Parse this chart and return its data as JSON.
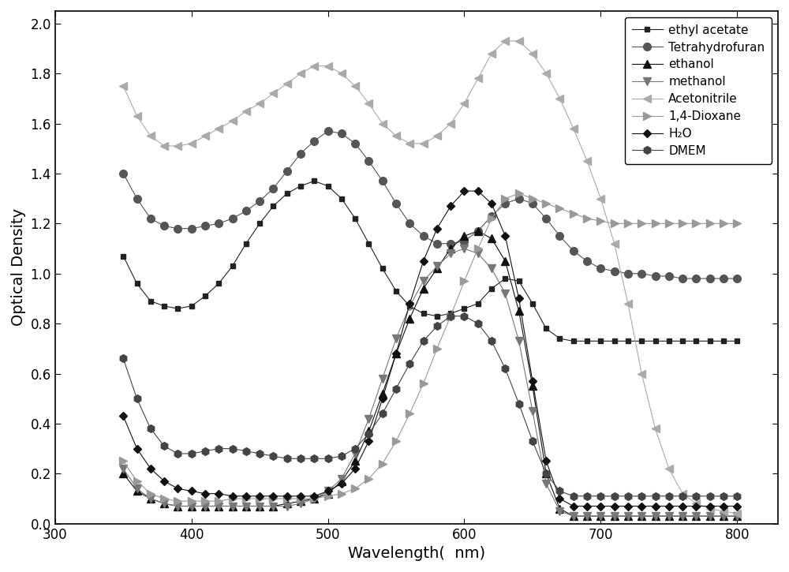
{
  "ylabel": "Optical Density",
  "xlabel": "Wavelength(  nm)",
  "xlim": [
    300,
    830
  ],
  "ylim": [
    0,
    2.05
  ],
  "xticks": [
    300,
    400,
    500,
    600,
    700,
    800
  ],
  "yticks": [
    0.0,
    0.2,
    0.4,
    0.6,
    0.8,
    1.0,
    1.2,
    1.4,
    1.6,
    1.8,
    2.0
  ],
  "series": [
    {
      "name": "ethyl acetate",
      "color": "#222222",
      "marker": "s",
      "markersize": 5,
      "linewidth": 0.8,
      "x": [
        350,
        360,
        370,
        380,
        390,
        400,
        410,
        420,
        430,
        440,
        450,
        460,
        470,
        480,
        490,
        500,
        510,
        520,
        530,
        540,
        550,
        560,
        570,
        580,
        590,
        600,
        610,
        620,
        630,
        640,
        650,
        660,
        670,
        680,
        690,
        700,
        710,
        720,
        730,
        740,
        750,
        760,
        770,
        780,
        790,
        800
      ],
      "y": [
        1.07,
        0.96,
        0.89,
        0.87,
        0.86,
        0.87,
        0.91,
        0.96,
        1.03,
        1.12,
        1.2,
        1.27,
        1.32,
        1.35,
        1.37,
        1.35,
        1.3,
        1.22,
        1.12,
        1.02,
        0.93,
        0.87,
        0.84,
        0.83,
        0.84,
        0.86,
        0.88,
        0.94,
        0.98,
        0.97,
        0.88,
        0.78,
        0.74,
        0.73,
        0.73,
        0.73,
        0.73,
        0.73,
        0.73,
        0.73,
        0.73,
        0.73,
        0.73,
        0.73,
        0.73,
        0.73
      ]
    },
    {
      "name": "Tetrahydrofuran",
      "color": "#555555",
      "marker": "o",
      "markersize": 7,
      "linewidth": 0.8,
      "x": [
        350,
        360,
        370,
        380,
        390,
        400,
        410,
        420,
        430,
        440,
        450,
        460,
        470,
        480,
        490,
        500,
        510,
        520,
        530,
        540,
        550,
        560,
        570,
        580,
        590,
        600,
        610,
        620,
        630,
        640,
        650,
        660,
        670,
        680,
        690,
        700,
        710,
        720,
        730,
        740,
        750,
        760,
        770,
        780,
        790,
        800
      ],
      "y": [
        1.4,
        1.3,
        1.22,
        1.19,
        1.18,
        1.18,
        1.19,
        1.2,
        1.22,
        1.25,
        1.29,
        1.34,
        1.41,
        1.48,
        1.53,
        1.57,
        1.56,
        1.52,
        1.45,
        1.37,
        1.28,
        1.2,
        1.15,
        1.12,
        1.12,
        1.13,
        1.17,
        1.23,
        1.28,
        1.3,
        1.28,
        1.22,
        1.15,
        1.09,
        1.05,
        1.02,
        1.01,
        1.0,
        1.0,
        0.99,
        0.99,
        0.98,
        0.98,
        0.98,
        0.98,
        0.98
      ]
    },
    {
      "name": "ethanol",
      "color": "#111111",
      "marker": "^",
      "markersize": 7,
      "linewidth": 0.8,
      "x": [
        350,
        360,
        370,
        380,
        390,
        400,
        410,
        420,
        430,
        440,
        450,
        460,
        470,
        480,
        490,
        500,
        510,
        520,
        530,
        540,
        550,
        560,
        570,
        580,
        590,
        600,
        610,
        620,
        630,
        640,
        650,
        660,
        670,
        680,
        690,
        700,
        710,
        720,
        730,
        740,
        750,
        760,
        770,
        780,
        790,
        800
      ],
      "y": [
        0.2,
        0.13,
        0.1,
        0.08,
        0.07,
        0.07,
        0.07,
        0.07,
        0.07,
        0.07,
        0.07,
        0.07,
        0.08,
        0.09,
        0.1,
        0.12,
        0.17,
        0.25,
        0.37,
        0.52,
        0.68,
        0.82,
        0.94,
        1.02,
        1.1,
        1.15,
        1.17,
        1.14,
        1.05,
        0.85,
        0.55,
        0.2,
        0.06,
        0.03,
        0.03,
        0.03,
        0.03,
        0.03,
        0.03,
        0.03,
        0.03,
        0.03,
        0.03,
        0.03,
        0.03,
        0.03
      ]
    },
    {
      "name": "methanol",
      "color": "#777777",
      "marker": "v",
      "markersize": 7,
      "linewidth": 0.8,
      "x": [
        350,
        360,
        370,
        380,
        390,
        400,
        410,
        420,
        430,
        440,
        450,
        460,
        470,
        480,
        490,
        500,
        510,
        520,
        530,
        540,
        550,
        560,
        570,
        580,
        590,
        600,
        610,
        620,
        630,
        640,
        650,
        660,
        670,
        680,
        690,
        700,
        710,
        720,
        730,
        740,
        750,
        760,
        770,
        780,
        790,
        800
      ],
      "y": [
        0.22,
        0.14,
        0.1,
        0.08,
        0.07,
        0.07,
        0.07,
        0.07,
        0.07,
        0.07,
        0.07,
        0.07,
        0.07,
        0.08,
        0.1,
        0.13,
        0.18,
        0.28,
        0.42,
        0.58,
        0.74,
        0.87,
        0.97,
        1.03,
        1.08,
        1.1,
        1.08,
        1.02,
        0.92,
        0.73,
        0.45,
        0.16,
        0.05,
        0.03,
        0.03,
        0.03,
        0.03,
        0.03,
        0.03,
        0.03,
        0.03,
        0.03,
        0.03,
        0.03,
        0.03,
        0.03
      ]
    },
    {
      "name": "Acetonitrile",
      "color": "#aaaaaa",
      "marker": "<",
      "markersize": 7,
      "linewidth": 0.8,
      "x": [
        350,
        360,
        370,
        380,
        390,
        400,
        410,
        420,
        430,
        440,
        450,
        460,
        470,
        480,
        490,
        500,
        510,
        520,
        530,
        540,
        550,
        560,
        570,
        580,
        590,
        600,
        610,
        620,
        630,
        640,
        650,
        660,
        670,
        680,
        690,
        700,
        710,
        720,
        730,
        740,
        750,
        760,
        770,
        780,
        790,
        800
      ],
      "y": [
        1.75,
        1.63,
        1.55,
        1.51,
        1.51,
        1.52,
        1.55,
        1.58,
        1.61,
        1.65,
        1.68,
        1.72,
        1.76,
        1.8,
        1.83,
        1.83,
        1.8,
        1.75,
        1.68,
        1.6,
        1.55,
        1.52,
        1.52,
        1.55,
        1.6,
        1.68,
        1.78,
        1.88,
        1.93,
        1.93,
        1.88,
        1.8,
        1.7,
        1.58,
        1.45,
        1.3,
        1.12,
        0.88,
        0.6,
        0.38,
        0.22,
        0.12,
        0.08,
        0.06,
        0.05,
        0.04
      ]
    },
    {
      "name": "1,4-Dioxane",
      "color": "#999999",
      "marker": ">",
      "markersize": 7,
      "linewidth": 0.8,
      "x": [
        350,
        360,
        370,
        380,
        390,
        400,
        410,
        420,
        430,
        440,
        450,
        460,
        470,
        480,
        490,
        500,
        510,
        520,
        530,
        540,
        550,
        560,
        570,
        580,
        590,
        600,
        610,
        620,
        630,
        640,
        650,
        660,
        670,
        680,
        690,
        700,
        710,
        720,
        730,
        740,
        750,
        760,
        770,
        780,
        790,
        800
      ],
      "y": [
        0.25,
        0.17,
        0.12,
        0.1,
        0.09,
        0.09,
        0.09,
        0.09,
        0.1,
        0.1,
        0.1,
        0.1,
        0.1,
        0.1,
        0.1,
        0.11,
        0.12,
        0.14,
        0.18,
        0.24,
        0.33,
        0.44,
        0.56,
        0.7,
        0.83,
        0.97,
        1.1,
        1.22,
        1.3,
        1.32,
        1.3,
        1.28,
        1.26,
        1.24,
        1.22,
        1.21,
        1.2,
        1.2,
        1.2,
        1.2,
        1.2,
        1.2,
        1.2,
        1.2,
        1.2,
        1.2
      ]
    },
    {
      "name": "H₂O",
      "color": "#111111",
      "marker": "D",
      "markersize": 5,
      "linewidth": 0.8,
      "x": [
        350,
        360,
        370,
        380,
        390,
        400,
        410,
        420,
        430,
        440,
        450,
        460,
        470,
        480,
        490,
        500,
        510,
        520,
        530,
        540,
        550,
        560,
        570,
        580,
        590,
        600,
        610,
        620,
        630,
        640,
        650,
        660,
        670,
        680,
        690,
        700,
        710,
        720,
        730,
        740,
        750,
        760,
        770,
        780,
        790,
        800
      ],
      "y": [
        0.43,
        0.3,
        0.22,
        0.17,
        0.14,
        0.13,
        0.12,
        0.12,
        0.11,
        0.11,
        0.11,
        0.11,
        0.11,
        0.11,
        0.11,
        0.13,
        0.16,
        0.22,
        0.33,
        0.5,
        0.68,
        0.88,
        1.05,
        1.18,
        1.27,
        1.33,
        1.33,
        1.28,
        1.15,
        0.9,
        0.57,
        0.25,
        0.1,
        0.07,
        0.07,
        0.07,
        0.07,
        0.07,
        0.07,
        0.07,
        0.07,
        0.07,
        0.07,
        0.07,
        0.07,
        0.07
      ]
    },
    {
      "name": "DMEM",
      "color": "#444444",
      "marker": "h",
      "markersize": 7,
      "linewidth": 0.8,
      "x": [
        350,
        360,
        370,
        380,
        390,
        400,
        410,
        420,
        430,
        440,
        450,
        460,
        470,
        480,
        490,
        500,
        510,
        520,
        530,
        540,
        550,
        560,
        570,
        580,
        590,
        600,
        610,
        620,
        630,
        640,
        650,
        660,
        670,
        680,
        690,
        700,
        710,
        720,
        730,
        740,
        750,
        760,
        770,
        780,
        790,
        800
      ],
      "y": [
        0.66,
        0.5,
        0.38,
        0.31,
        0.28,
        0.28,
        0.29,
        0.3,
        0.3,
        0.29,
        0.28,
        0.27,
        0.26,
        0.26,
        0.26,
        0.26,
        0.27,
        0.3,
        0.36,
        0.44,
        0.54,
        0.64,
        0.73,
        0.79,
        0.83,
        0.83,
        0.8,
        0.73,
        0.62,
        0.48,
        0.33,
        0.2,
        0.13,
        0.11,
        0.11,
        0.11,
        0.11,
        0.11,
        0.11,
        0.11,
        0.11,
        0.11,
        0.11,
        0.11,
        0.11,
        0.11
      ]
    }
  ]
}
